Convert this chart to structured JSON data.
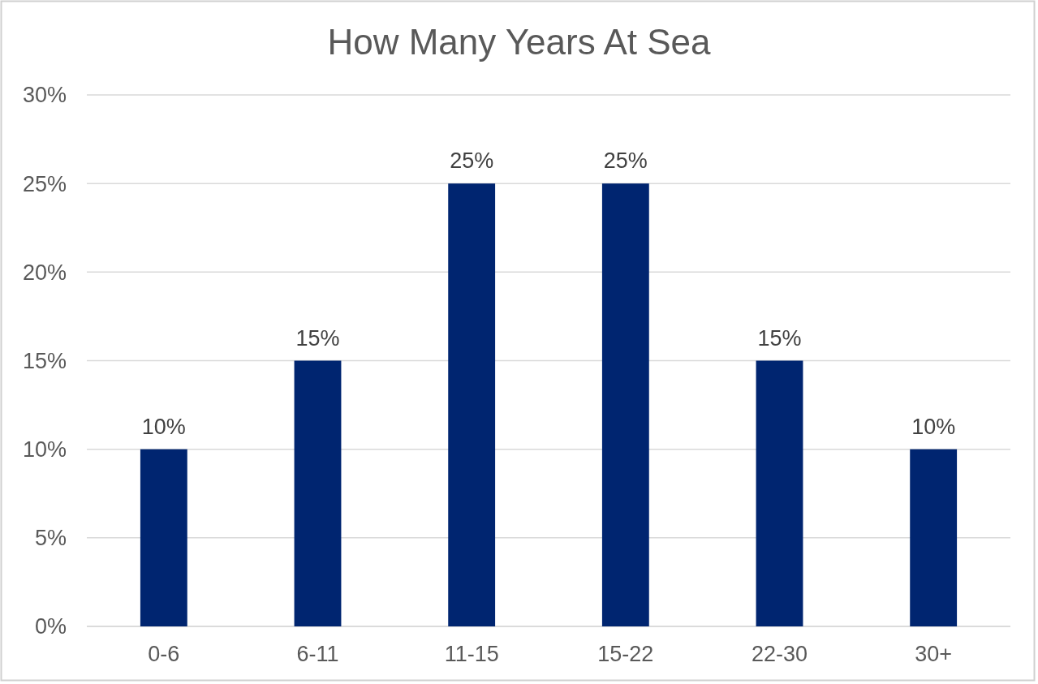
{
  "chart_data": {
    "type": "bar",
    "title": "How Many Years At Sea",
    "categories": [
      "0-6",
      "6-11",
      "11-15",
      "15-22",
      "22-30",
      "30+"
    ],
    "values": [
      10,
      15,
      25,
      25,
      15,
      10
    ],
    "value_labels": [
      "10%",
      "15%",
      "25%",
      "25%",
      "15%",
      "10%"
    ],
    "color": "#002570",
    "ylim": [
      0,
      30
    ],
    "yticks": [
      {
        "value": 0,
        "label": "0%"
      },
      {
        "value": 5,
        "label": "5%"
      },
      {
        "value": 10,
        "label": "10%"
      },
      {
        "value": 15,
        "label": "15%"
      },
      {
        "value": 20,
        "label": "20%"
      },
      {
        "value": 25,
        "label": "25%"
      },
      {
        "value": 30,
        "label": "30%"
      }
    ],
    "grid": "y"
  }
}
